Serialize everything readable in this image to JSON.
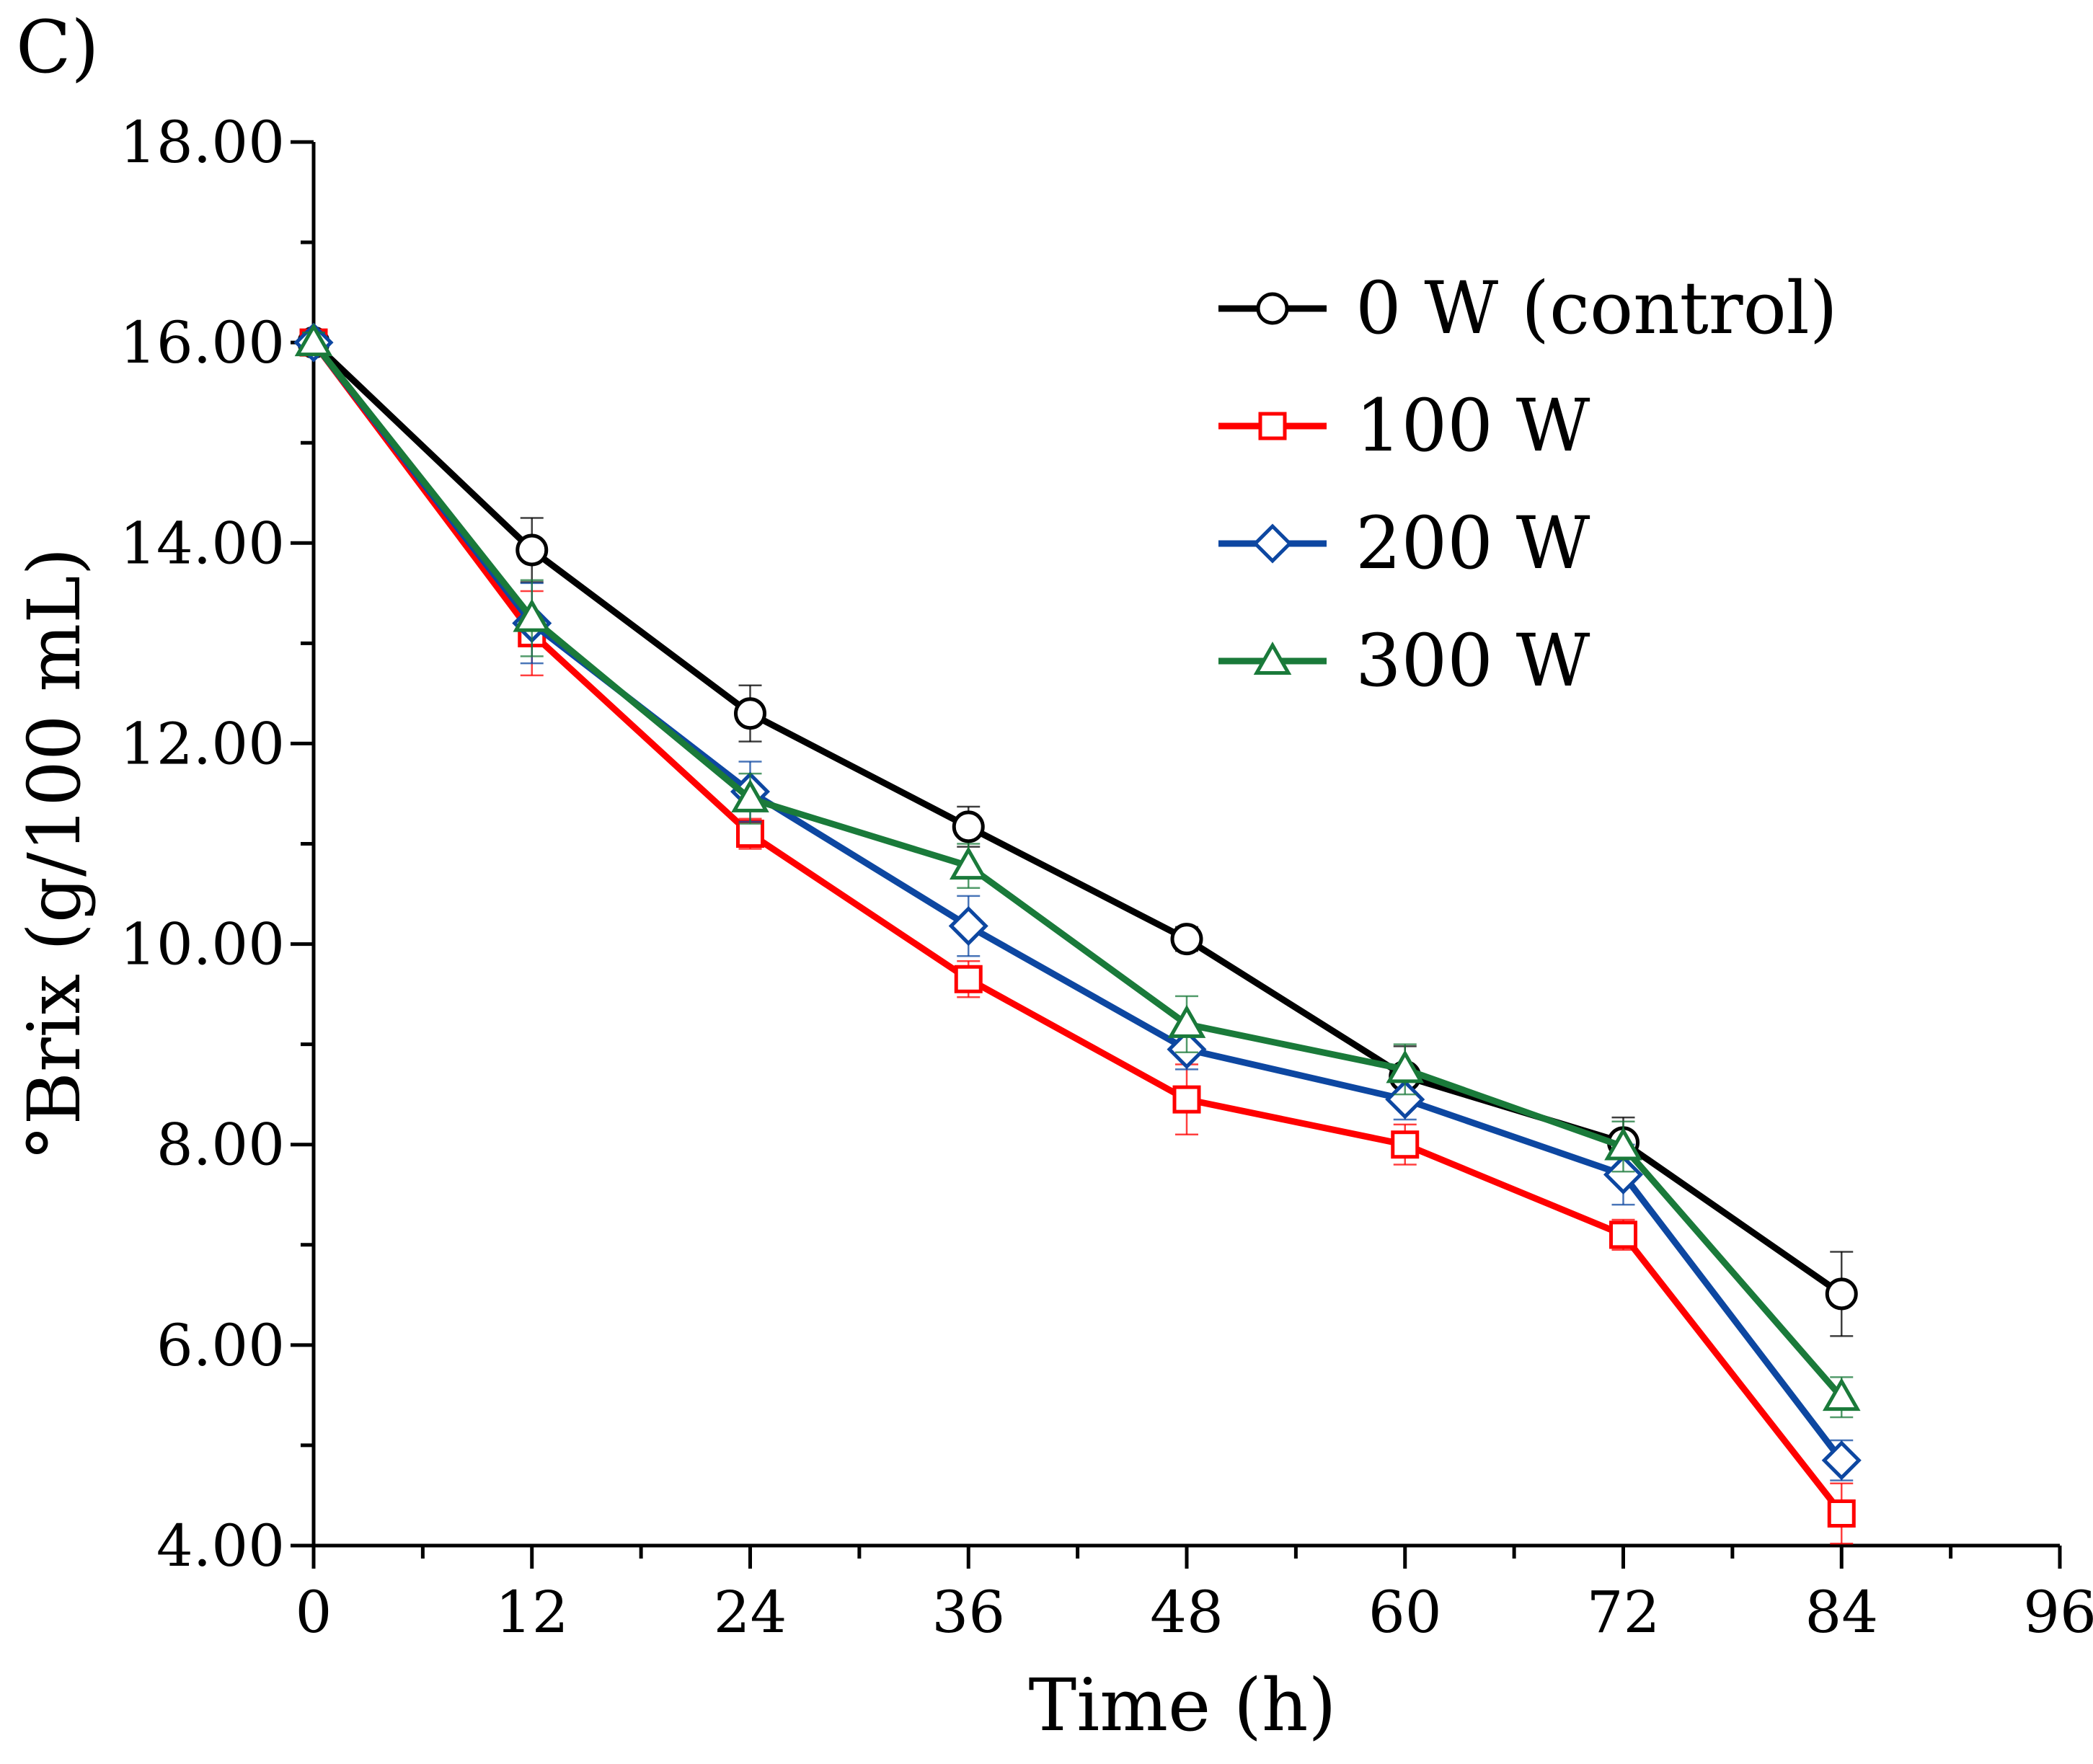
{
  "panel_label": "C)",
  "chart_data": {
    "type": "line",
    "title": "",
    "xlabel": "Time (h)",
    "ylabel": "°Brix (g/100 mL)",
    "xlim": [
      0,
      96
    ],
    "ylim": [
      4,
      18
    ],
    "x_ticks": [
      {
        "value": 0,
        "label": "0"
      },
      {
        "value": 12,
        "label": "12"
      },
      {
        "value": 24,
        "label": "24"
      },
      {
        "value": 36,
        "label": "36"
      },
      {
        "value": 48,
        "label": "48"
      },
      {
        "value": 60,
        "label": "60"
      },
      {
        "value": 72,
        "label": "72"
      },
      {
        "value": 84,
        "label": "84"
      },
      {
        "value": 96,
        "label": "96"
      }
    ],
    "x_minor_ticks": [
      6,
      18,
      30,
      42,
      54,
      66,
      78,
      90
    ],
    "y_ticks": [
      {
        "value": 4,
        "label": "4.00"
      },
      {
        "value": 6,
        "label": "6.00"
      },
      {
        "value": 8,
        "label": "8.00"
      },
      {
        "value": 10,
        "label": "10.00"
      },
      {
        "value": 12,
        "label": "12.00"
      },
      {
        "value": 14,
        "label": "14.00"
      },
      {
        "value": 16,
        "label": "16.00"
      },
      {
        "value": 18,
        "label": "18.00"
      }
    ],
    "y_minor_ticks": [
      5,
      7,
      9,
      11,
      13,
      15,
      17
    ],
    "grid": false,
    "legend_position": "top-right",
    "x": [
      0,
      12,
      24,
      36,
      48,
      60,
      72,
      84
    ],
    "series": [
      {
        "name": "0 W (control)",
        "color": "#000000",
        "marker": "circle",
        "values": [
          16.0,
          13.93,
          12.3,
          11.17,
          10.05,
          8.68,
          8.02,
          6.51
        ],
        "errors": [
          0.1,
          0.32,
          0.28,
          0.2,
          0.12,
          0.3,
          0.25,
          0.42
        ]
      },
      {
        "name": "100 W",
        "color": "#ff0000",
        "marker": "square",
        "values": [
          16.0,
          13.1,
          11.1,
          9.65,
          8.45,
          8.0,
          7.1,
          4.32
        ],
        "errors": [
          0.1,
          0.42,
          0.15,
          0.18,
          0.35,
          0.2,
          0.15,
          0.3
        ]
      },
      {
        "name": "200 W",
        "color": "#0d47a1",
        "marker": "diamond",
        "values": [
          16.0,
          13.2,
          11.52,
          10.18,
          8.95,
          8.45,
          7.7,
          4.85
        ],
        "errors": [
          0.1,
          0.4,
          0.3,
          0.3,
          0.2,
          0.2,
          0.3,
          0.2
        ]
      },
      {
        "name": "300 W",
        "color": "#1a7a3a",
        "marker": "triangle",
        "values": [
          16.0,
          13.25,
          11.45,
          10.78,
          9.2,
          8.75,
          7.98,
          5.48
        ],
        "errors": [
          0.1,
          0.38,
          0.25,
          0.22,
          0.28,
          0.25,
          0.25,
          0.2
        ]
      }
    ]
  }
}
